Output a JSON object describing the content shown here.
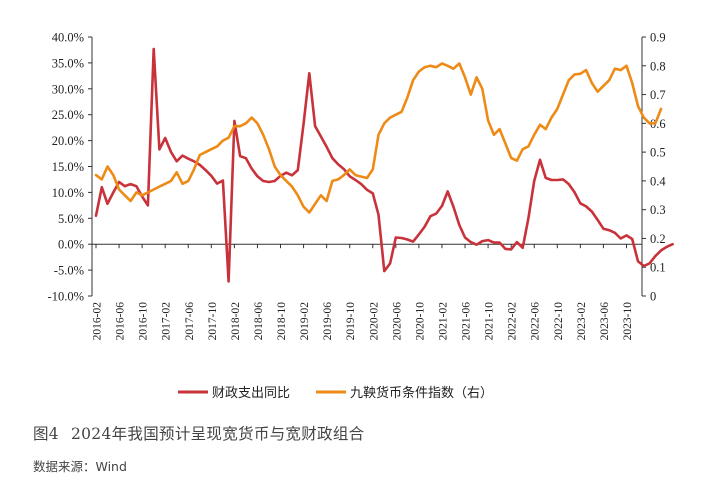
{
  "caption": {
    "figure_label": "图4",
    "title": "2024年我国预计呈现宽货币与宽财政组合"
  },
  "source": "数据来源：Wind",
  "colors": {
    "series_fiscal": "#c8323a",
    "series_monetary": "#ee8a16",
    "axis": "#333333",
    "text": "#222222"
  },
  "chart_data": {
    "type": "line",
    "title": "",
    "y_left": {
      "ticks": [
        -0.1,
        -0.05,
        0.0,
        0.05,
        0.1,
        0.15,
        0.2,
        0.25,
        0.3,
        0.35,
        0.4
      ],
      "tick_labels": [
        "-10.0%",
        "-5.0%",
        "0.0%",
        "5.0%",
        "10.0%",
        "15.0%",
        "20.0%",
        "25.0%",
        "30.0%",
        "35.0%",
        "40.0%"
      ],
      "range": [
        -0.1,
        0.4
      ]
    },
    "y_right": {
      "ticks": [
        0,
        0.1,
        0.2,
        0.3,
        0.4,
        0.5,
        0.6,
        0.7,
        0.8,
        0.9
      ],
      "tick_labels": [
        "0",
        "0.1",
        "0.2",
        "0.3",
        "0.4",
        "0.5",
        "0.6",
        "0.7",
        "0.8",
        "0.9"
      ],
      "range": [
        0,
        0.9
      ]
    },
    "x_tick_labels": [
      "2016-02",
      "2016-06",
      "2016-10",
      "2017-02",
      "2017-06",
      "2017-10",
      "2018-02",
      "2018-06",
      "2018-10",
      "2019-02",
      "2019-06",
      "2019-10",
      "2020-02",
      "2020-06",
      "2020-10",
      "2021-02",
      "2021-06",
      "2021-10",
      "2022-02",
      "2022-06",
      "2022-10",
      "2023-02",
      "2023-06",
      "2023-10"
    ],
    "x_start": "2016-02",
    "x_end": "2023-12",
    "legend_position": "bottom",
    "series": [
      {
        "name": "财政支出同比",
        "axis": "left",
        "color": "#c8323a",
        "values": [
          0.055,
          0.11,
          0.078,
          0.1,
          0.12,
          0.112,
          0.116,
          0.112,
          0.092,
          0.075,
          0.377,
          0.183,
          0.205,
          0.178,
          0.16,
          0.171,
          0.165,
          0.16,
          0.153,
          0.143,
          0.132,
          0.117,
          0.123,
          -0.072,
          0.238,
          0.17,
          0.166,
          0.146,
          0.131,
          0.122,
          0.12,
          0.122,
          0.132,
          0.138,
          0.133,
          0.143,
          0.233,
          0.33,
          0.228,
          0.208,
          0.188,
          0.166,
          0.154,
          0.145,
          0.131,
          0.124,
          0.116,
          0.105,
          0.098,
          0.057,
          -0.052,
          -0.037,
          0.013,
          0.012,
          0.009,
          0.005,
          0.019,
          0.034,
          0.054,
          0.059,
          0.074,
          0.102,
          0.072,
          0.037,
          0.013,
          0.004,
          -0.001,
          0.006,
          0.008,
          0.003,
          0.003,
          -0.009,
          -0.01,
          0.004,
          -0.007,
          0.05,
          0.122,
          0.163,
          0.128,
          0.124,
          0.124,
          0.125,
          0.116,
          0.1,
          0.079,
          0.073,
          0.063,
          0.047,
          0.03,
          0.027,
          0.022,
          0.011,
          0.017,
          0.01,
          -0.033,
          -0.042,
          -0.037,
          -0.023,
          -0.012,
          -0.005,
          0.0
        ]
      },
      {
        "name": "九鞅货币条件指数（右）",
        "axis": "right",
        "color": "#ee8a16",
        "values": [
          0.42,
          0.405,
          0.45,
          0.42,
          0.37,
          0.35,
          0.33,
          0.36,
          0.35,
          0.36,
          0.37,
          0.38,
          0.39,
          0.4,
          0.43,
          0.39,
          0.4,
          0.44,
          0.49,
          0.5,
          0.51,
          0.52,
          0.54,
          0.55,
          0.59,
          0.59,
          0.6,
          0.62,
          0.6,
          0.56,
          0.51,
          0.45,
          0.42,
          0.4,
          0.38,
          0.35,
          0.31,
          0.29,
          0.32,
          0.35,
          0.33,
          0.4,
          0.405,
          0.42,
          0.44,
          0.42,
          0.415,
          0.41,
          0.44,
          0.56,
          0.6,
          0.62,
          0.63,
          0.64,
          0.69,
          0.75,
          0.78,
          0.795,
          0.8,
          0.795,
          0.808,
          0.8,
          0.79,
          0.808,
          0.76,
          0.7,
          0.76,
          0.72,
          0.61,
          0.56,
          0.58,
          0.53,
          0.48,
          0.47,
          0.51,
          0.52,
          0.56,
          0.595,
          0.58,
          0.62,
          0.65,
          0.7,
          0.75,
          0.77,
          0.772,
          0.785,
          0.74,
          0.71,
          0.73,
          0.75,
          0.79,
          0.785,
          0.8,
          0.74,
          0.66,
          0.62,
          0.6,
          0.6,
          0.65
        ]
      }
    ]
  }
}
